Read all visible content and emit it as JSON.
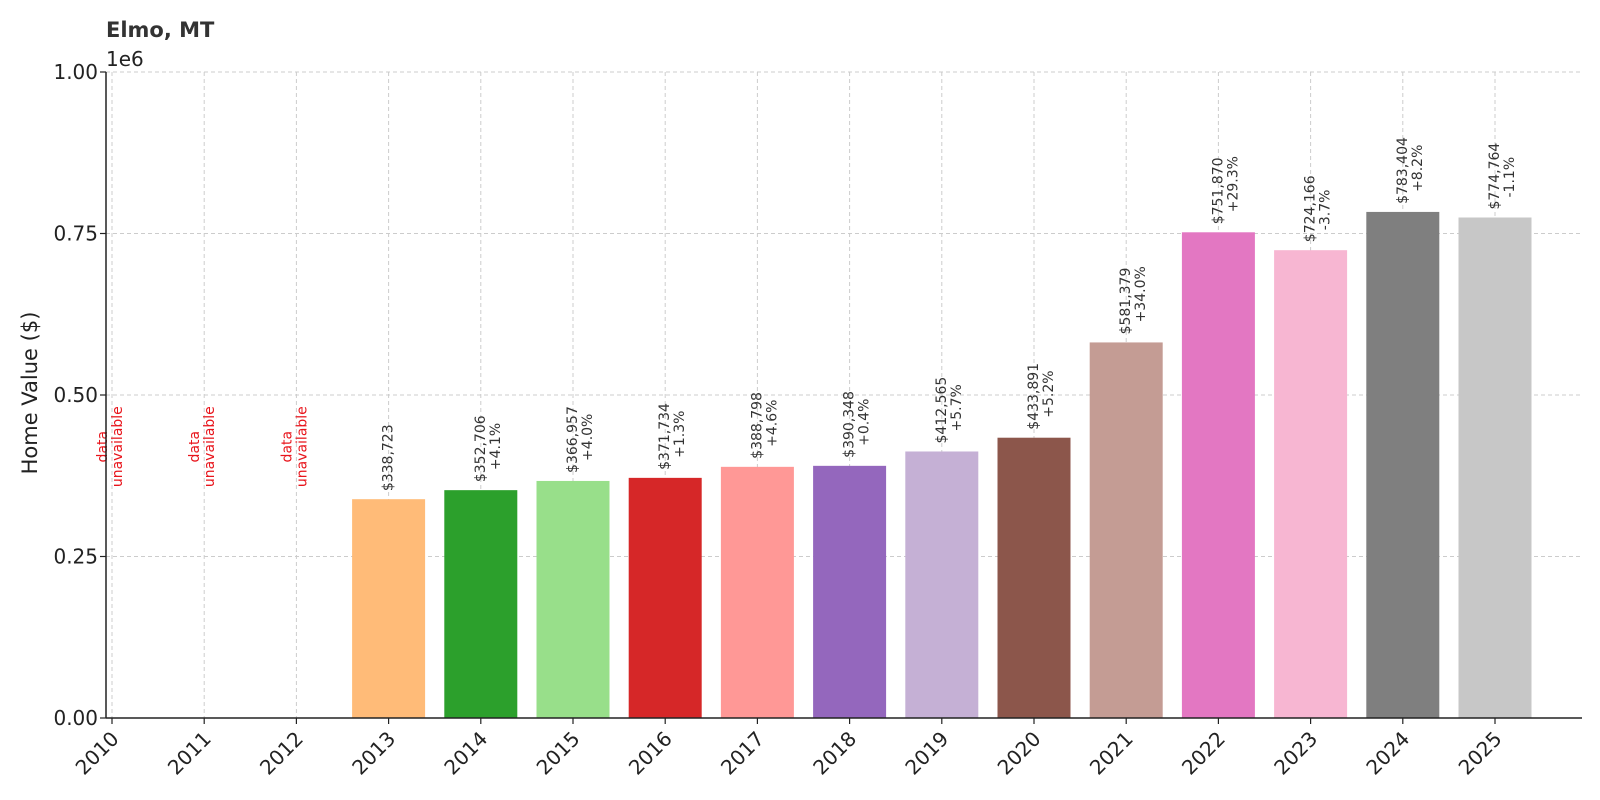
{
  "chart_data": {
    "type": "bar",
    "title": "Elmo, MT",
    "ylabel": "Home Value ($)",
    "xlabel": "",
    "offset_text": "1e6",
    "ylim": [
      0,
      1000000
    ],
    "yticks": [
      {
        "value": 0,
        "label": "0.00"
      },
      {
        "value": 250000,
        "label": "0.25"
      },
      {
        "value": 500000,
        "label": "0.50"
      },
      {
        "value": 750000,
        "label": "0.75"
      },
      {
        "value": 1000000,
        "label": "1.00"
      }
    ],
    "grid": true,
    "categories": [
      "2010",
      "2011",
      "2012",
      "2013",
      "2014",
      "2015",
      "2016",
      "2017",
      "2018",
      "2019",
      "2020",
      "2021",
      "2022",
      "2023",
      "2024",
      "2025"
    ],
    "values": [
      null,
      null,
      null,
      338723,
      352706,
      366957,
      371734,
      388798,
      390348,
      412565,
      433891,
      581379,
      751870,
      724166,
      783404,
      774764
    ],
    "value_labels": [
      "",
      "",
      "",
      "$338,723",
      "$352,706",
      "$366,957",
      "$371,734",
      "$388,798",
      "$390,348",
      "$412,565",
      "$433,891",
      "$581,379",
      "$751,870",
      "$724,166",
      "$783,404",
      "$774,764"
    ],
    "change_labels": [
      "",
      "",
      "",
      "",
      "+4.1%",
      "+4.0%",
      "+1.3%",
      "+4.6%",
      "+0.4%",
      "+5.7%",
      "+5.2%",
      "+34.0%",
      "+29.3%",
      "-3.7%",
      "+8.2%",
      "-1.1%"
    ],
    "unavailable_text": [
      "data",
      "unavailable"
    ],
    "colors": [
      "#1f77b4",
      "#ff7f0e",
      "#aec7e8",
      "#ffbb78",
      "#2ca02c",
      "#98df8a",
      "#d62728",
      "#ff9896",
      "#9467bd",
      "#c5b0d5",
      "#8c564b",
      "#c49c94",
      "#e377c2",
      "#f7b6d2",
      "#7f7f7f",
      "#c7c7c7"
    ],
    "unavailable_color": "#e8141b"
  }
}
